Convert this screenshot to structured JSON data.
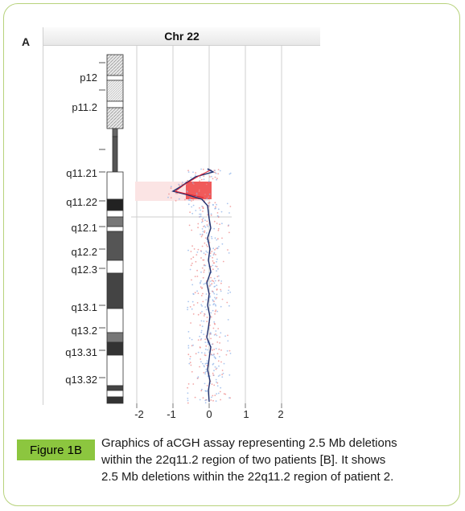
{
  "panel_label": "A",
  "chart_title": "Chr 22",
  "band_labels": [
    "p12",
    "p11.2",
    "q11.21",
    "q11.22",
    "q12.1",
    "q12.2",
    "q12.3",
    "q13.1",
    "q13.2",
    "q13.31",
    "q13.32"
  ],
  "x_ticks": [
    "-2",
    "-1",
    "0",
    "1",
    "2"
  ],
  "figure_label": "Figure 1B",
  "caption_lines": [
    "Graphics of aCGH assay representing 2.5 Mb deletions",
    "within the 22q11.2 region of two patients [B]. It shows",
    "2.5 Mb deletions within the 22q11.2 region of patient 2."
  ],
  "colors": {
    "frame": "#b7d27c",
    "badge": "#8cc63f",
    "deletion": "#f05a5a",
    "profile": "#1f2f6e",
    "scatter": "#8fb3e8"
  },
  "chart_data": {
    "type": "scatter",
    "title": "Chr 22",
    "xlabel": "",
    "ylabel": "",
    "xlim": [
      -2.5,
      2.5
    ],
    "x_ticks": [
      -2,
      -1,
      0,
      1,
      2
    ],
    "series": [
      {
        "values": [
          {
            "band": "q11.21",
            "log2ratio": 0.1
          },
          {
            "band": "q11.22",
            "log2ratio": -0.9
          },
          {
            "band": "q11.22",
            "log2ratio": -0.1
          },
          {
            "band": "q12.1",
            "log2ratio": 0.0
          },
          {
            "band": "q12.2",
            "log2ratio": 0.0
          },
          {
            "band": "q12.3",
            "log2ratio": 0.0
          },
          {
            "band": "q13.1",
            "log2ratio": 0.0
          },
          {
            "band": "q13.2",
            "log2ratio": 0.0
          },
          {
            "band": "q13.31",
            "log2ratio": 0.0
          },
          {
            "band": "q13.32",
            "log2ratio": 0.0
          }
        ]
      }
    ]
  }
}
